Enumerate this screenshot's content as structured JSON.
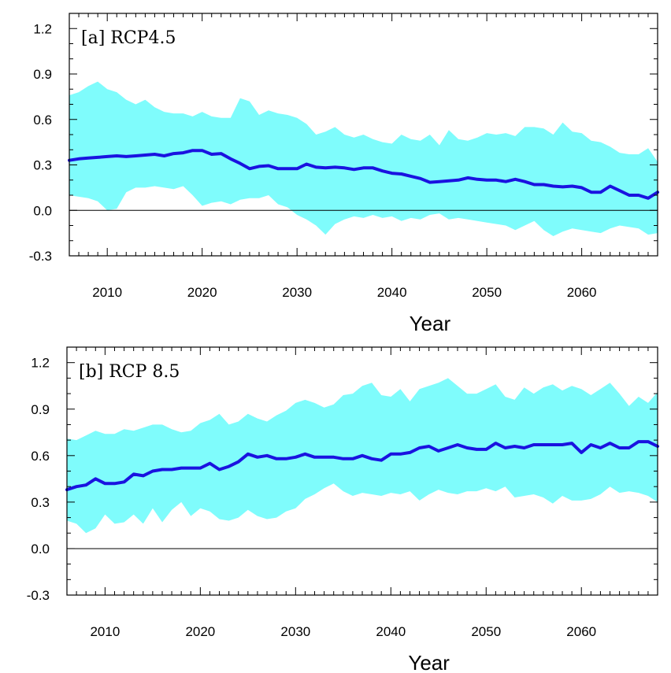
{
  "chart_data": [
    {
      "type": "area",
      "panel_label": "[a] RCP4.5",
      "xlabel": "Year",
      "ylabel": "",
      "xlim": [
        2006,
        2068
      ],
      "ylim": [
        -0.3,
        1.3
      ],
      "x_ticks": [
        2010,
        2020,
        2030,
        2040,
        2050,
        2060
      ],
      "x_tick_labels": [
        "2010",
        "2020",
        "2030",
        "2040",
        "2050",
        "2060"
      ],
      "y_ticks": [
        -0.3,
        0.0,
        0.3,
        0.6,
        0.9,
        1.2
      ],
      "y_tick_labels": [
        "-0.3",
        "0.0",
        "0.3",
        "0.6",
        "0.9",
        "1.2"
      ],
      "zero_line": true,
      "grid": false,
      "colors": {
        "band": "#7ffcfc",
        "mean": "#1a13e0",
        "zero_line": "#000000"
      },
      "x": [
        2006,
        2007,
        2008,
        2009,
        2010,
        2011,
        2012,
        2013,
        2014,
        2015,
        2016,
        2017,
        2018,
        2019,
        2020,
        2021,
        2022,
        2023,
        2024,
        2025,
        2026,
        2027,
        2028,
        2029,
        2030,
        2031,
        2032,
        2033,
        2034,
        2035,
        2036,
        2037,
        2038,
        2039,
        2040,
        2041,
        2042,
        2043,
        2044,
        2045,
        2046,
        2047,
        2048,
        2049,
        2050,
        2051,
        2052,
        2053,
        2054,
        2055,
        2056,
        2057,
        2058,
        2059,
        2060,
        2061,
        2062,
        2063,
        2064,
        2065,
        2066,
        2067,
        2068
      ],
      "series": [
        {
          "type": "line",
          "values": [
            0.33,
            0.34,
            0.345,
            0.35,
            0.355,
            0.36,
            0.355,
            0.36,
            0.365,
            0.37,
            0.36,
            0.375,
            0.38,
            0.395,
            0.395,
            0.37,
            0.375,
            0.34,
            0.31,
            0.275,
            0.29,
            0.295,
            0.275,
            0.275,
            0.275,
            0.305,
            0.285,
            0.28,
            0.285,
            0.28,
            0.27,
            0.28,
            0.28,
            0.26,
            0.245,
            0.24,
            0.225,
            0.21,
            0.185,
            0.19,
            0.195,
            0.2,
            0.215,
            0.205,
            0.2,
            0.2,
            0.19,
            0.205,
            0.19,
            0.17,
            0.17,
            0.16,
            0.155,
            0.16,
            0.15,
            0.12,
            0.12,
            0.16,
            0.13,
            0.1,
            0.1,
            0.08,
            0.12
          ]
        },
        {
          "type": "band",
          "upper": [
            0.76,
            0.78,
            0.82,
            0.85,
            0.8,
            0.78,
            0.73,
            0.7,
            0.73,
            0.68,
            0.65,
            0.64,
            0.64,
            0.62,
            0.65,
            0.62,
            0.61,
            0.61,
            0.74,
            0.72,
            0.63,
            0.66,
            0.64,
            0.63,
            0.61,
            0.57,
            0.5,
            0.52,
            0.55,
            0.5,
            0.48,
            0.5,
            0.47,
            0.45,
            0.44,
            0.5,
            0.47,
            0.46,
            0.5,
            0.43,
            0.53,
            0.47,
            0.46,
            0.48,
            0.51,
            0.5,
            0.51,
            0.49,
            0.55,
            0.55,
            0.54,
            0.5,
            0.58,
            0.52,
            0.51,
            0.46,
            0.45,
            0.42,
            0.38,
            0.37,
            0.37,
            0.41,
            0.32
          ],
          "lower": [
            0.1,
            0.09,
            0.08,
            0.06,
            0.0,
            0.01,
            0.12,
            0.15,
            0.15,
            0.16,
            0.15,
            0.14,
            0.16,
            0.1,
            0.03,
            0.05,
            0.06,
            0.04,
            0.07,
            0.08,
            0.08,
            0.1,
            0.04,
            0.02,
            -0.03,
            -0.06,
            -0.1,
            -0.16,
            -0.09,
            -0.06,
            -0.04,
            -0.05,
            -0.03,
            -0.05,
            -0.04,
            -0.07,
            -0.05,
            -0.06,
            -0.03,
            -0.02,
            -0.06,
            -0.05,
            -0.06,
            -0.07,
            -0.08,
            -0.09,
            -0.1,
            -0.13,
            -0.1,
            -0.07,
            -0.13,
            -0.17,
            -0.14,
            -0.12,
            -0.13,
            -0.14,
            -0.15,
            -0.12,
            -0.1,
            -0.11,
            -0.12,
            -0.16,
            -0.15
          ]
        }
      ]
    },
    {
      "type": "area",
      "panel_label": "[b] RCP 8.5",
      "xlabel": "Year",
      "ylabel": "",
      "xlim": [
        2006,
        2068
      ],
      "ylim": [
        -0.3,
        1.3
      ],
      "x_ticks": [
        2010,
        2020,
        2030,
        2040,
        2050,
        2060
      ],
      "x_tick_labels": [
        "2010",
        "2020",
        "2030",
        "2040",
        "2050",
        "2060"
      ],
      "y_ticks": [
        -0.3,
        0.0,
        0.3,
        0.6,
        0.9,
        1.2
      ],
      "y_tick_labels": [
        "-0.3",
        "0.0",
        "0.3",
        "0.6",
        "0.9",
        "1.2"
      ],
      "zero_line": true,
      "grid": false,
      "colors": {
        "band": "#7ffcfc",
        "mean": "#1a13e0",
        "zero_line": "#000000"
      },
      "x": [
        2006,
        2007,
        2008,
        2009,
        2010,
        2011,
        2012,
        2013,
        2014,
        2015,
        2016,
        2017,
        2018,
        2019,
        2020,
        2021,
        2022,
        2023,
        2024,
        2025,
        2026,
        2027,
        2028,
        2029,
        2030,
        2031,
        2032,
        2033,
        2034,
        2035,
        2036,
        2037,
        2038,
        2039,
        2040,
        2041,
        2042,
        2043,
        2044,
        2045,
        2046,
        2047,
        2048,
        2049,
        2050,
        2051,
        2052,
        2053,
        2054,
        2055,
        2056,
        2057,
        2058,
        2059,
        2060,
        2061,
        2062,
        2063,
        2064,
        2065,
        2066,
        2067,
        2068
      ],
      "series": [
        {
          "type": "line",
          "values": [
            0.38,
            0.4,
            0.41,
            0.45,
            0.42,
            0.42,
            0.43,
            0.48,
            0.47,
            0.5,
            0.51,
            0.51,
            0.52,
            0.52,
            0.52,
            0.55,
            0.51,
            0.53,
            0.56,
            0.61,
            0.59,
            0.6,
            0.58,
            0.58,
            0.59,
            0.61,
            0.59,
            0.59,
            0.59,
            0.58,
            0.58,
            0.6,
            0.58,
            0.57,
            0.61,
            0.61,
            0.62,
            0.65,
            0.66,
            0.63,
            0.65,
            0.67,
            0.65,
            0.64,
            0.64,
            0.68,
            0.65,
            0.66,
            0.65,
            0.67,
            0.67,
            0.67,
            0.67,
            0.68,
            0.62,
            0.67,
            0.65,
            0.68,
            0.65,
            0.65,
            0.69,
            0.69,
            0.66
          ]
        },
        {
          "type": "band",
          "upper": [
            0.71,
            0.7,
            0.73,
            0.76,
            0.74,
            0.74,
            0.77,
            0.76,
            0.78,
            0.8,
            0.8,
            0.77,
            0.75,
            0.76,
            0.81,
            0.83,
            0.87,
            0.8,
            0.82,
            0.87,
            0.84,
            0.82,
            0.86,
            0.89,
            0.94,
            0.96,
            0.94,
            0.91,
            0.93,
            0.99,
            1.0,
            1.05,
            1.07,
            0.99,
            0.98,
            1.03,
            0.95,
            1.03,
            1.05,
            1.07,
            1.1,
            1.05,
            1.0,
            1.0,
            1.03,
            1.06,
            0.98,
            0.96,
            1.04,
            1.0,
            1.04,
            1.06,
            1.02,
            1.05,
            1.03,
            0.99,
            1.03,
            1.07,
            1.0,
            0.92,
            0.98,
            0.94,
            1.01
          ],
          "lower": [
            0.18,
            0.16,
            0.1,
            0.13,
            0.22,
            0.16,
            0.17,
            0.22,
            0.16,
            0.26,
            0.17,
            0.25,
            0.3,
            0.21,
            0.26,
            0.24,
            0.19,
            0.18,
            0.2,
            0.25,
            0.21,
            0.19,
            0.2,
            0.24,
            0.26,
            0.32,
            0.35,
            0.39,
            0.42,
            0.37,
            0.34,
            0.36,
            0.35,
            0.34,
            0.36,
            0.35,
            0.37,
            0.31,
            0.35,
            0.38,
            0.36,
            0.35,
            0.37,
            0.37,
            0.39,
            0.37,
            0.4,
            0.33,
            0.34,
            0.35,
            0.33,
            0.29,
            0.34,
            0.31,
            0.31,
            0.32,
            0.35,
            0.4,
            0.36,
            0.37,
            0.36,
            0.34,
            0.3
          ]
        }
      ]
    }
  ]
}
